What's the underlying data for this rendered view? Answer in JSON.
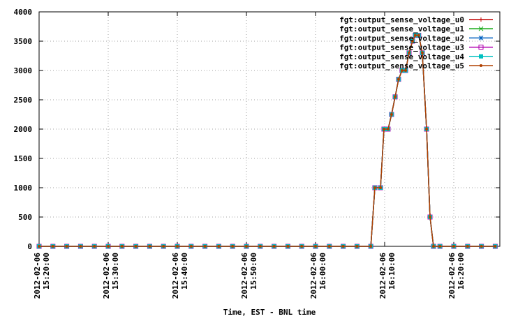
{
  "chart_data": {
    "type": "line",
    "xlabel": "Time, EST - BNL time",
    "ylim": [
      0,
      4000
    ],
    "yticks": [
      0,
      500,
      1000,
      1500,
      2000,
      2500,
      3000,
      3500,
      4000
    ],
    "xlim": [
      "2012-02-06 15:20:00",
      "2012-02-06 16:26:40"
    ],
    "xticks": [
      {
        "value": "2012-02-06 15:20:00",
        "label": [
          "2012-02-06",
          "15:20:00"
        ]
      },
      {
        "value": "2012-02-06 15:30:00",
        "label": [
          "2012-02-06",
          "15:30:00"
        ]
      },
      {
        "value": "2012-02-06 15:40:00",
        "label": [
          "2012-02-06",
          "15:40:00"
        ]
      },
      {
        "value": "2012-02-06 15:50:00",
        "label": [
          "2012-02-06",
          "15:50:00"
        ]
      },
      {
        "value": "2012-02-06 16:00:00",
        "label": [
          "2012-02-06",
          "16:00:00"
        ]
      },
      {
        "value": "2012-02-06 16:10:00",
        "label": [
          "2012-02-06",
          "16:10:00"
        ]
      },
      {
        "value": "2012-02-06 16:20:00",
        "label": [
          "2012-02-06",
          "16:20:00"
        ]
      }
    ],
    "grid": true,
    "legend": "top-right",
    "x": [
      "2012-02-06 15:20:00",
      "2012-02-06 15:22:00",
      "2012-02-06 15:24:00",
      "2012-02-06 15:26:00",
      "2012-02-06 15:28:00",
      "2012-02-06 15:30:00",
      "2012-02-06 15:32:00",
      "2012-02-06 15:34:00",
      "2012-02-06 15:36:00",
      "2012-02-06 15:38:00",
      "2012-02-06 15:40:00",
      "2012-02-06 15:42:00",
      "2012-02-06 15:44:00",
      "2012-02-06 15:46:00",
      "2012-02-06 15:48:00",
      "2012-02-06 15:50:00",
      "2012-02-06 15:52:00",
      "2012-02-06 15:54:00",
      "2012-02-06 15:56:00",
      "2012-02-06 15:58:00",
      "2012-02-06 16:00:00",
      "2012-02-06 16:02:00",
      "2012-02-06 16:04:00",
      "2012-02-06 16:06:00",
      "2012-02-06 16:08:00",
      "2012-02-06 16:08:35",
      "2012-02-06 16:09:24",
      "2012-02-06 16:09:54",
      "2012-02-06 16:10:30",
      "2012-02-06 16:11:00",
      "2012-02-06 16:11:31",
      "2012-02-06 16:12:01",
      "2012-02-06 16:12:31",
      "2012-02-06 16:13:02",
      "2012-02-06 16:13:32",
      "2012-02-06 16:14:02",
      "2012-02-06 16:14:26",
      "2012-02-06 16:14:56",
      "2012-02-06 16:15:27",
      "2012-02-06 16:16:04",
      "2012-02-06 16:16:34",
      "2012-02-06 16:17:04",
      "2012-02-06 16:18:00",
      "2012-02-06 16:20:00",
      "2012-02-06 16:22:00",
      "2012-02-06 16:24:00",
      "2012-02-06 16:26:00"
    ],
    "series": [
      {
        "name": "fgt:output_sense_voltage_u0",
        "color": "#c00000",
        "marker": "plus",
        "values": [
          0,
          0,
          0,
          0,
          0,
          0,
          0,
          0,
          0,
          0,
          0,
          0,
          0,
          0,
          0,
          0,
          0,
          0,
          0,
          0,
          0,
          0,
          0,
          0,
          0,
          1000,
          1000,
          2000,
          2000,
          2250,
          2550,
          2850,
          3000,
          3000,
          3300,
          3500,
          3600,
          3600,
          3300,
          2000,
          500,
          0,
          0,
          0,
          0,
          0,
          0
        ]
      },
      {
        "name": "fgt:output_sense_voltage_u1",
        "color": "#00a000",
        "marker": "cross",
        "values": [
          0,
          0,
          0,
          0,
          0,
          0,
          0,
          0,
          0,
          0,
          0,
          0,
          0,
          0,
          0,
          0,
          0,
          0,
          0,
          0,
          0,
          0,
          0,
          0,
          0,
          1000,
          1000,
          2000,
          2000,
          2250,
          2550,
          2850,
          3000,
          3000,
          3300,
          3500,
          3600,
          3600,
          3300,
          2000,
          500,
          0,
          0,
          0,
          0,
          0,
          0
        ]
      },
      {
        "name": "fgt:output_sense_voltage_u2",
        "color": "#0060c0",
        "marker": "star",
        "values": [
          0,
          0,
          0,
          0,
          0,
          0,
          0,
          0,
          0,
          0,
          0,
          0,
          0,
          0,
          0,
          0,
          0,
          0,
          0,
          0,
          0,
          0,
          0,
          0,
          0,
          1000,
          1000,
          2000,
          2000,
          2250,
          2550,
          2850,
          3000,
          3000,
          3300,
          3500,
          3600,
          3600,
          3300,
          2000,
          500,
          0,
          0,
          0,
          0,
          0,
          0
        ]
      },
      {
        "name": "fgt:output_sense_voltage_u3",
        "color": "#b000b0",
        "marker": "square",
        "values": [
          0,
          0,
          0,
          0,
          0,
          0,
          0,
          0,
          0,
          0,
          0,
          0,
          0,
          0,
          0,
          0,
          0,
          0,
          0,
          0,
          0,
          0,
          0,
          0,
          0,
          1000,
          1000,
          2000,
          2000,
          2250,
          2550,
          2850,
          3000,
          3000,
          3300,
          3500,
          3600,
          3600,
          3300,
          2000,
          500,
          0,
          0,
          0,
          0,
          0,
          0
        ]
      },
      {
        "name": "fgt:output_sense_voltage_u4",
        "color": "#00c0c0",
        "marker": "filled-square",
        "values": [
          0,
          0,
          0,
          0,
          0,
          0,
          0,
          0,
          0,
          0,
          0,
          0,
          0,
          0,
          0,
          0,
          0,
          0,
          0,
          0,
          0,
          0,
          0,
          0,
          0,
          1000,
          1000,
          2000,
          2000,
          2250,
          2550,
          2850,
          3000,
          3000,
          3300,
          3500,
          3600,
          3600,
          3300,
          2000,
          500,
          0,
          0,
          0,
          0,
          0,
          0
        ]
      },
      {
        "name": "fgt:output_sense_voltage_u5",
        "color": "#b04000",
        "marker": "dot",
        "values": [
          0,
          0,
          0,
          0,
          0,
          0,
          0,
          0,
          0,
          0,
          0,
          0,
          0,
          0,
          0,
          0,
          0,
          0,
          0,
          0,
          0,
          0,
          0,
          0,
          0,
          1000,
          1000,
          2000,
          2000,
          2250,
          2550,
          2850,
          3000,
          3000,
          3300,
          3500,
          3600,
          3600,
          3300,
          2000,
          500,
          0,
          0,
          0,
          0,
          0,
          0
        ]
      }
    ]
  }
}
